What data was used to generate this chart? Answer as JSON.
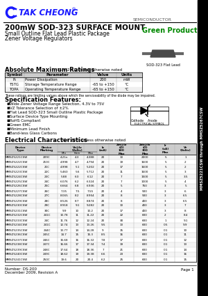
{
  "title_company": "TAK CHEONG",
  "title_reg": "®",
  "title_semiconductor": "SEMICONDUCTOR",
  "doc_title": "200mW SOD-323 SURFACE MOUNT",
  "doc_subtitle1": "Small Outline Flat Lead Plastic Package",
  "doc_subtitle2": "Zener Voltage Regulators",
  "green_product": "Green Product",
  "part_number_side": "MMSZ5221CSW through MMSZ5267CSW",
  "abs_max_title": "Absolute Maximum Ratings",
  "abs_max_note": "  Tₐ = 25°C unless otherwise noted",
  "abs_max_headers": [
    "Symbol",
    "Parameter",
    "Value",
    "Units"
  ],
  "abs_max_rows": [
    [
      "Pₙ",
      "Power Dissipation",
      "200",
      "mW"
    ],
    [
      "TSTG",
      "Storage Temperature Range",
      "-65 to +150",
      "°C"
    ],
    [
      "TOPA",
      "Operating Temperature Range",
      "-65 to +150",
      "°C"
    ]
  ],
  "abs_max_footer": "These ratings are limiting values above which the serviceability of the diode may be impaired.",
  "spec_title": "Specification Features:",
  "spec_bullets": [
    "Wide Zener Voltage Range Selection, 4.3V to 75V",
    "VZ Tolerance Selection of ±2%",
    "Flat Lead SOD-323 Small Outline Plastic Package",
    "Surface Device Type Mounting",
    "RoHS Compliant",
    "Green EMC",
    "Minimum Lead Finish",
    "Band-less Glass Carbons"
  ],
  "elec_char_title": "Electrical Characteristics",
  "elec_char_note": "  Tₐ = 25°C unless otherwise noted",
  "col_h1": [
    "Device\nType",
    "Device\nMarking",
    "Vz@Iz\n(Volts)",
    "IZT\n(mA)",
    "Zzt@Iz\n(Ω)\n100\nMax",
    "Zzk@Ik x=0.25mA\nIk (Ω)\n300\nMax",
    "Ir@Vr\n(uA)\nMax",
    "Vr\n(Volts)"
  ],
  "col_h2": [
    "",
    "",
    "Min  Nom  Max",
    "",
    "",
    "",
    "",
    ""
  ],
  "table_rows": [
    [
      "MMSZ5221CSW",
      "209C",
      "4.21n",
      "4.3",
      "4.388",
      "20",
      "10",
      "2000",
      "5",
      "1"
    ],
    [
      "MMSZ5222CSW",
      "210C",
      "4.998",
      "4.7",
      "4.794",
      "20",
      "19",
      "1600",
      "5",
      "2"
    ],
    [
      "MMSZ5222CSW",
      "21C",
      "4.998",
      "5.1",
      "5.202",
      "20",
      "17",
      "1600",
      "5",
      "2"
    ],
    [
      "MMSZ5223CSW",
      "22C",
      "5.460",
      "5.6",
      "5.712",
      "20",
      "11",
      "1600",
      "5",
      "3"
    ],
    [
      "MMSZ5224CSW",
      "23C",
      "5.88",
      "6.0",
      "6.12",
      "20",
      "7",
      "1500",
      "5",
      "3.5"
    ],
    [
      "MMSZ5225CSW",
      "24C",
      "6.076",
      "6.2",
      "6.324",
      "20",
      "7",
      "1000",
      "5",
      "4"
    ],
    [
      "MMSZ5226CSW",
      "25C",
      "6.664",
      "6.8",
      "6.936",
      "20",
      "5",
      "750",
      "3",
      "5"
    ],
    [
      "MMSZ5227CSW",
      "26C",
      "7.35",
      "7.5",
      "7.55",
      "20",
      "4",
      "500",
      "3",
      "6"
    ],
    [
      "MMSZ5228CSW",
      "27C",
      "8.065",
      "8.2",
      "8.954",
      "20",
      "8",
      "500",
      "3",
      "6.5"
    ],
    [
      "MMSZ5229CSW",
      "28C",
      "8.526",
      "8.7",
      "8.874",
      "20",
      "8",
      "400",
      "3",
      "6.5"
    ],
    [
      "MMSZ5230CSW",
      "29C",
      "8.918",
      "9.1",
      "9.282",
      "20",
      "10",
      "400",
      "3",
      "7"
    ],
    [
      "MMSZ5231CSW",
      "30C",
      "9.9",
      "10",
      "10.2",
      "20",
      "17",
      "400",
      "3",
      "8"
    ],
    [
      "MMSZ5232CSW",
      "241C",
      "10.78",
      "11",
      "11.22",
      "20",
      "22",
      "600",
      "2",
      "8.4"
    ],
    [
      "MMSZ5233CSW",
      "24C",
      "11.76",
      "12",
      "12.24",
      "20",
      "30",
      "600",
      "1",
      "9.1"
    ],
    [
      "MMSZ5234CSW",
      "241C",
      "12.74",
      "13",
      "13.26",
      "9.5",
      "13",
      "600",
      "0.5",
      "9.9"
    ],
    [
      "MMSZ5235CSW",
      "244C",
      "13.77",
      "14",
      "14.28",
      "9",
      "15",
      "600",
      "0.1",
      "10"
    ],
    [
      "MMSZ5236CSW",
      "245C",
      "14.7",
      "15",
      "15.3",
      "8.5",
      "16",
      "600",
      "0.1",
      "11"
    ],
    [
      "MMSZ5237CSW",
      "246C",
      "15.68",
      "16",
      "16.32",
      "7.8",
      "17",
      "600",
      "0.1",
      "12"
    ],
    [
      "MMSZ5238CSW",
      "247C",
      "16.66",
      "17",
      "17.34",
      "7.4",
      "19",
      "600",
      "0.1",
      "13"
    ],
    [
      "MMSZ5239CSW",
      "248C",
      "17.64",
      "18",
      "18.36",
      "7",
      "21",
      "600",
      "0.1",
      "14"
    ],
    [
      "MMSZ5240CSW",
      "249C",
      "18.62",
      "19",
      "19.38",
      "6.6",
      "23",
      "600",
      "0.1",
      "16"
    ],
    [
      "MMSZ5241CSW",
      "250C",
      "19.6",
      "20",
      "20.4",
      "6.2",
      "25",
      "600",
      "0.1",
      "15"
    ]
  ],
  "footer_number": "Number: DS-200",
  "footer_date": "December 2009, Revision A",
  "footer_page": "Page 1",
  "bg_color": "#ffffff",
  "blue_color": "#1a1aff",
  "green_color": "#008800",
  "dark_color": "#333366"
}
